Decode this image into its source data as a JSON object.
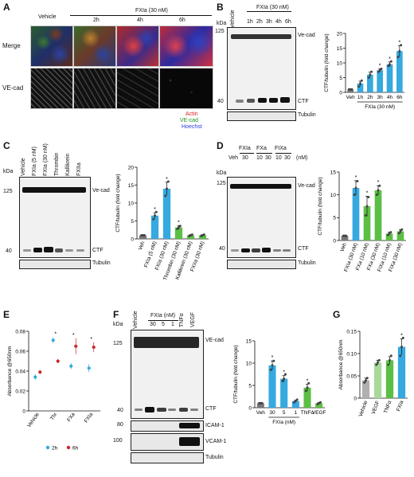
{
  "panels": {
    "A": {
      "letter": "A",
      "vehicle": "Vehicle",
      "treatment": "FXIa (30 nM)",
      "times": [
        "2h",
        "4h",
        "6h"
      ],
      "rows": [
        "Merge",
        "VE-cad"
      ],
      "legend": [
        "Actin",
        "VE-cad",
        "Hoechst"
      ],
      "legend_colors": [
        "#e02020",
        "#1a9a1a",
        "#2a3ae0"
      ]
    },
    "B": {
      "letter": "B",
      "kda": "kDa",
      "lanes": [
        "Vehicle",
        "1h",
        "2h",
        "3h",
        "4h",
        "6h"
      ],
      "treat": "FXIa (30 nM)",
      "markers": [
        "125",
        "40"
      ],
      "bands": [
        "Ve-cad",
        "CTF",
        "Tubulin"
      ]
    },
    "C": {
      "letter": "C",
      "kda": "kDa",
      "lanes": [
        "Vehicle",
        "FXIa (5 nM)",
        "FXIa (30 nM)",
        "Thrombin",
        "Kallikrein",
        "FXIIa"
      ],
      "markers": [
        "125",
        "40"
      ],
      "bands": [
        "Ve-cad",
        "CTF",
        "Tubulin"
      ]
    },
    "D": {
      "letter": "D",
      "kda": "kDa",
      "groups": [
        "FXIa",
        "FXa",
        "FIXa"
      ],
      "lanes": [
        "Veh",
        "30",
        "10",
        "30",
        "10",
        "30"
      ],
      "unit": "(nM)",
      "markers": [
        "125",
        "40"
      ],
      "bands": [
        "Ve-cad",
        "CTF",
        "Tubulin"
      ]
    },
    "E": {
      "letter": "E"
    },
    "F": {
      "letter": "F",
      "kda": "kDa",
      "lanes": [
        "Vehicle",
        "30",
        "5",
        "1",
        "TNFα",
        "VEGF"
      ],
      "treat": "FXIa (nM)",
      "markers": [
        "125",
        "40",
        "80",
        "100"
      ],
      "bands": [
        "VE-cad",
        "CTF",
        "ICAM-1",
        "VCAM-1",
        "Tubulin"
      ]
    },
    "G": {
      "letter": "G"
    }
  },
  "chart_data": [
    {
      "id": "B",
      "type": "bar",
      "ylabel": "CTF/tubulin (fold change)",
      "ylim": [
        0,
        20
      ],
      "yticks": [
        0,
        5,
        10,
        15,
        20
      ],
      "categories": [
        "Veh",
        "1h",
        "2h",
        "3h",
        "4h",
        "6h"
      ],
      "group_label": "FXIa (30 nM)",
      "values": [
        1,
        3,
        6,
        7.5,
        9.5,
        14
      ],
      "errors": [
        0.2,
        0.8,
        0.9,
        0.5,
        0.8,
        1.8
      ],
      "points": [
        [
          1,
          1,
          1
        ],
        [
          2,
          3,
          4
        ],
        [
          5,
          6,
          7
        ],
        [
          7,
          7.5,
          8
        ],
        [
          9,
          9.5,
          10.5
        ],
        [
          12,
          14,
          16
        ]
      ],
      "significant": [
        false,
        false,
        false,
        true,
        true,
        true
      ],
      "colors": [
        "#777777",
        "#35a9e0",
        "#35a9e0",
        "#35a9e0",
        "#35a9e0",
        "#35a9e0"
      ]
    },
    {
      "id": "C",
      "type": "bar",
      "ylabel": "CTF/tubulin (fold change)",
      "ylim": [
        0,
        20
      ],
      "yticks": [
        0,
        5,
        10,
        15,
        20
      ],
      "categories": [
        "Veh",
        "FXIa (5 nM)",
        "FXIa (30 nM)",
        "Thrombin (30 nM)",
        "Kallikrein (30 nM)",
        "FXIIa (30 nM)"
      ],
      "values": [
        1,
        6.5,
        14,
        3.2,
        1,
        1
      ],
      "errors": [
        0.2,
        0.8,
        1.8,
        0.5,
        0.2,
        0.2
      ],
      "points": [
        [
          1,
          1,
          1
        ],
        [
          5.5,
          6.5,
          7.5
        ],
        [
          12,
          14,
          16
        ],
        [
          2.8,
          3.2,
          3.6
        ],
        [
          0.8,
          1,
          1.2
        ],
        [
          0.8,
          1,
          1.2
        ]
      ],
      "significant": [
        false,
        true,
        true,
        true,
        false,
        false
      ],
      "colors": [
        "#777777",
        "#35a9e0",
        "#35a9e0",
        "#5cbf45",
        "#5cbf45",
        "#5cbf45"
      ]
    },
    {
      "id": "D",
      "type": "bar",
      "ylabel": "CTF/tubulin (fold change)",
      "ylim": [
        0,
        15
      ],
      "yticks": [
        0,
        5,
        10,
        15
      ],
      "categories": [
        "Veh",
        "FXIa (30 nM)",
        "FXa (10 nM)",
        "FXa (30 nM)",
        "FIXa (10 nM)",
        "FIXa (30 nM)"
      ],
      "values": [
        1,
        11.5,
        7.5,
        11,
        1.5,
        2
      ],
      "errors": [
        0.2,
        1.6,
        2.2,
        1,
        0.3,
        0.4
      ],
      "points": [
        [
          1,
          1,
          1
        ],
        [
          10,
          11.5,
          13
        ],
        [
          5.5,
          7.5,
          9.5
        ],
        [
          10,
          11,
          12
        ],
        [
          1.2,
          1.5,
          1.8
        ],
        [
          1.6,
          2,
          2.4
        ]
      ],
      "significant": [
        false,
        true,
        true,
        true,
        false,
        false
      ],
      "colors": [
        "#777777",
        "#35a9e0",
        "#5cbf45",
        "#5cbf45",
        "#5cbf45",
        "#5cbf45"
      ]
    },
    {
      "id": "E",
      "type": "scatter",
      "ylabel": "Absorbance @650nm",
      "ylim": [
        0,
        0.08
      ],
      "yticks": [
        "0",
        "0.02",
        "0.04",
        "0.06",
        "0.08"
      ],
      "categories": [
        "Vehicle",
        "Thr",
        "FXa",
        "FXIa"
      ],
      "series": [
        {
          "name": "2h",
          "color": "#35a9e0",
          "values": [
            0.034,
            0.071,
            0.045,
            0.043
          ],
          "errors": [
            0.003,
            0.003,
            0.003,
            0.004
          ]
        },
        {
          "name": "6h",
          "color": "#c8282d",
          "values": [
            0.039,
            0.05,
            0.065,
            0.064
          ],
          "errors": [
            0.002,
            0.002,
            0.008,
            0.005
          ]
        }
      ],
      "significant": [
        false,
        true,
        true,
        true
      ]
    },
    {
      "id": "F",
      "type": "bar",
      "ylabel": "CTF/tubulin (fold change)",
      "ylim": [
        0,
        15
      ],
      "yticks": [
        0,
        5,
        10,
        15
      ],
      "categories": [
        "Veh",
        "30",
        "5",
        "1",
        "TNFα",
        "VEGF"
      ],
      "group_label": "FXIa (nM)",
      "values": [
        1,
        9.5,
        6.5,
        1.5,
        4.5,
        1
      ],
      "errors": [
        0.2,
        1,
        0.7,
        0.2,
        0.8,
        0.2
      ],
      "points": [
        [
          1,
          1,
          1
        ],
        [
          8.5,
          9.5,
          10.5
        ],
        [
          6,
          6.5,
          7.5
        ],
        [
          1.2,
          1.5,
          1.8
        ],
        [
          3.8,
          4.5,
          5.5
        ],
        [
          0.8,
          1,
          1.2
        ]
      ],
      "significant": [
        false,
        true,
        true,
        false,
        true,
        false
      ],
      "colors": [
        "#777777",
        "#35a9e0",
        "#35a9e0",
        "#35a9e0",
        "#5cbf45",
        "#5cbf45"
      ]
    },
    {
      "id": "G",
      "type": "bar",
      "ylabel": "Absorbance @650nm",
      "ylim": [
        0,
        0.15
      ],
      "yticks": [
        "0",
        "0.05",
        "0.10",
        "0.15"
      ],
      "categories": [
        "Vehicle",
        "VEGF",
        "TNFα",
        "FXIa"
      ],
      "values": [
        0.04,
        0.08,
        0.085,
        0.115
      ],
      "errors": [
        0.005,
        0.005,
        0.008,
        0.018
      ],
      "points": [
        [
          0.035,
          0.04,
          0.045
        ],
        [
          0.075,
          0.08,
          0.085
        ],
        [
          0.075,
          0.085,
          0.095
        ],
        [
          0.095,
          0.115,
          0.135
        ]
      ],
      "significant": [
        false,
        false,
        false,
        true
      ],
      "colors": [
        "#b0b0b0",
        "#a8d99b",
        "#5cbf45",
        "#35a9e0"
      ]
    }
  ]
}
